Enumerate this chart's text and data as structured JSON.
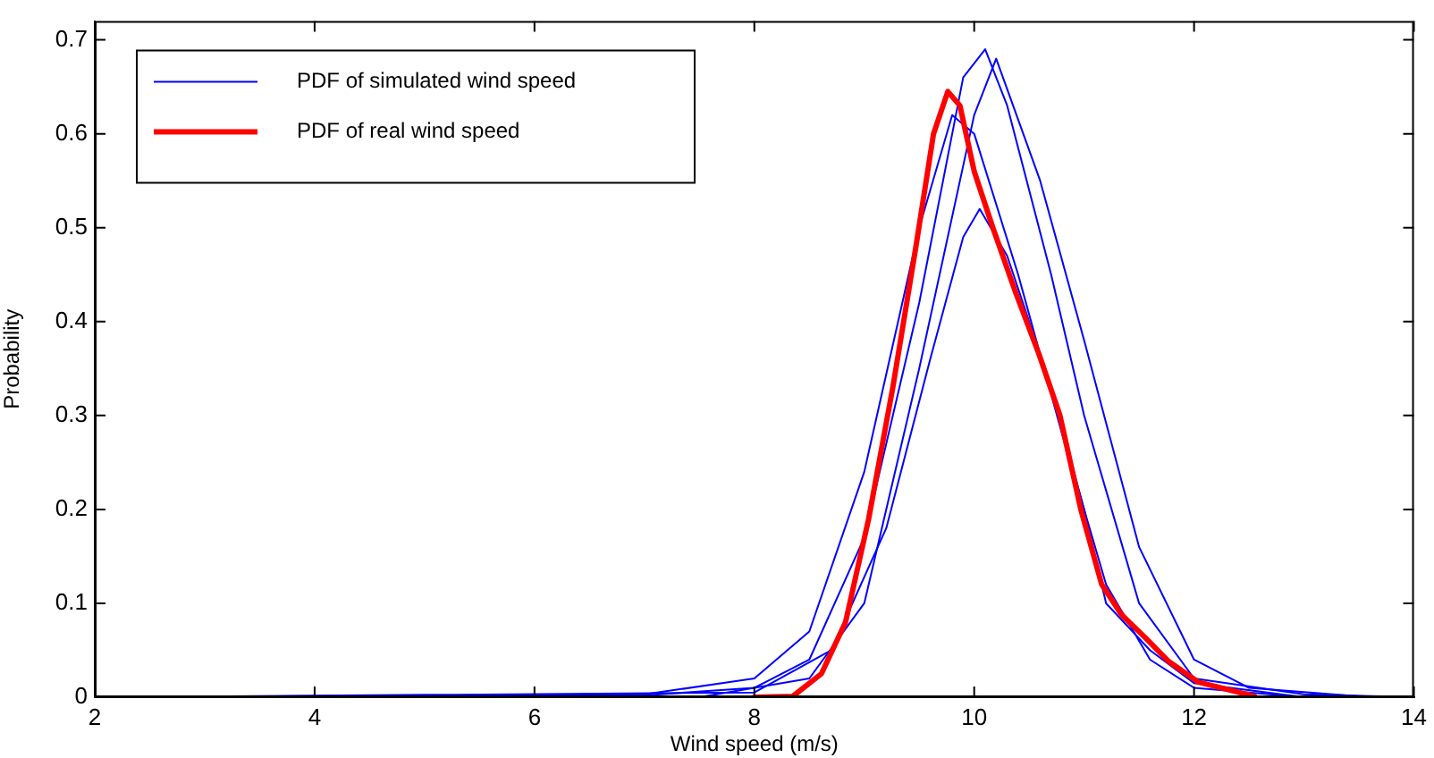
{
  "chart_data": {
    "type": "line",
    "xlabel": "Wind speed (m/s)",
    "ylabel": "Probability",
    "xlim": [
      2,
      14
    ],
    "xticks": [
      2,
      4,
      6,
      8,
      10,
      12,
      14
    ],
    "ylim": [
      0,
      0.72
    ],
    "yticks": [
      0,
      0.1,
      0.2,
      0.3,
      0.4,
      0.5,
      0.6,
      0.7
    ],
    "grid": false,
    "legend": "top left",
    "marker": "none",
    "line_style": "solid",
    "series": [
      {
        "name": "PDF of simulated wind speed",
        "color": "#0000ff",
        "x": [
          2,
          6,
          7,
          8,
          8.5,
          9,
          9.5,
          9.9,
          10.1,
          10.3,
          10.7,
          11,
          11.5,
          12,
          13,
          14
        ],
        "values": [
          0,
          0,
          0.002,
          0.01,
          0.04,
          0.17,
          0.42,
          0.66,
          0.69,
          0.63,
          0.45,
          0.3,
          0.1,
          0.02,
          0.003,
          0
        ]
      },
      {
        "color": "#0000ff",
        "x": [
          2,
          7,
          8,
          8.5,
          9,
          9.5,
          9.8,
          10,
          10.4,
          10.8,
          11.2,
          11.6,
          12,
          13,
          14
        ],
        "values": [
          0,
          0.003,
          0.02,
          0.07,
          0.24,
          0.5,
          0.62,
          0.6,
          0.45,
          0.28,
          0.12,
          0.04,
          0.01,
          0,
          0
        ]
      },
      {
        "color": "#0000ff",
        "x": [
          2,
          7.5,
          8.5,
          9,
          9.5,
          10,
          10.2,
          10.6,
          11,
          11.5,
          12,
          12.5,
          13.5,
          14
        ],
        "values": [
          0,
          0,
          0.02,
          0.1,
          0.35,
          0.62,
          0.68,
          0.55,
          0.38,
          0.16,
          0.04,
          0.01,
          0.001,
          0
        ]
      },
      {
        "color": "#0000ff",
        "x": [
          2,
          8,
          8.7,
          9.2,
          9.6,
          9.9,
          10.05,
          10.3,
          10.7,
          11,
          11.2,
          11.6,
          12,
          13,
          14
        ],
        "values": [
          0,
          0.005,
          0.05,
          0.18,
          0.36,
          0.49,
          0.52,
          0.47,
          0.33,
          0.2,
          0.1,
          0.05,
          0.015,
          0,
          0
        ]
      },
      {
        "name": "PDF of real wind speed",
        "color": "#ff0000",
        "x": [
          8,
          8.35,
          8.61,
          8.83,
          9.04,
          9.26,
          9.47,
          9.63,
          9.76,
          9.87,
          10,
          10.17,
          10.38,
          10.59,
          10.78,
          10.97,
          11.16,
          11.34,
          11.56,
          11.77,
          12.04,
          12.55
        ],
        "values": [
          0,
          0.001,
          0.025,
          0.08,
          0.19,
          0.33,
          0.48,
          0.6,
          0.645,
          0.63,
          0.56,
          0.5,
          0.43,
          0.365,
          0.3,
          0.2,
          0.12,
          0.088,
          0.063,
          0.038,
          0.016,
          0.001
        ]
      }
    ]
  }
}
